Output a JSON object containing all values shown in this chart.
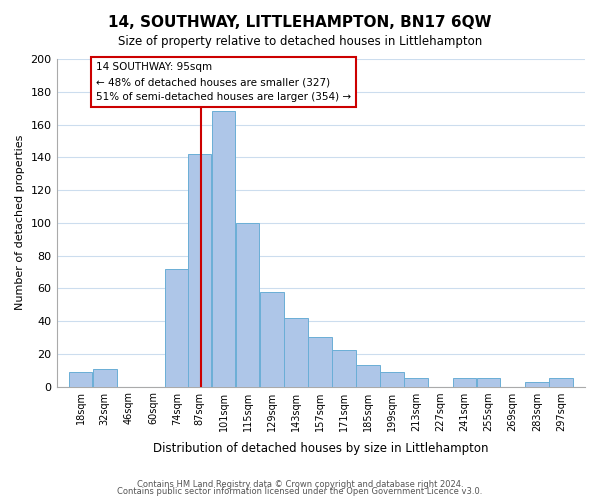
{
  "title": "14, SOUTHWAY, LITTLEHAMPTON, BN17 6QW",
  "subtitle": "Size of property relative to detached houses in Littlehampton",
  "xlabel": "Distribution of detached houses by size in Littlehampton",
  "ylabel": "Number of detached properties",
  "bin_labels": [
    "18sqm",
    "32sqm",
    "46sqm",
    "60sqm",
    "74sqm",
    "87sqm",
    "101sqm",
    "115sqm",
    "129sqm",
    "143sqm",
    "157sqm",
    "171sqm",
    "185sqm",
    "199sqm",
    "213sqm",
    "227sqm",
    "241sqm",
    "255sqm",
    "269sqm",
    "283sqm",
    "297sqm"
  ],
  "bin_edges": [
    18,
    32,
    46,
    60,
    74,
    87,
    101,
    115,
    129,
    143,
    157,
    171,
    185,
    199,
    213,
    227,
    241,
    255,
    269,
    283,
    297
  ],
  "counts": [
    9,
    11,
    0,
    0,
    72,
    142,
    168,
    100,
    58,
    42,
    30,
    22,
    13,
    9,
    5,
    0,
    5,
    5,
    0,
    3,
    5
  ],
  "bar_color": "#aec6e8",
  "bar_edge_color": "#6aaed6",
  "vline_x": 95,
  "vline_color": "#cc0000",
  "annotation_title": "14 SOUTHWAY: 95sqm",
  "annotation_line1": "← 48% of detached houses are smaller (327)",
  "annotation_line2": "51% of semi-detached houses are larger (354) →",
  "annotation_box_color": "#ffffff",
  "annotation_box_edge": "#cc0000",
  "ylim": [
    0,
    200
  ],
  "yticks": [
    0,
    20,
    40,
    60,
    80,
    100,
    120,
    140,
    160,
    180,
    200
  ],
  "footer1": "Contains HM Land Registry data © Crown copyright and database right 2024.",
  "footer2": "Contains public sector information licensed under the Open Government Licence v3.0.",
  "background_color": "#ffffff",
  "grid_color": "#ccddee"
}
